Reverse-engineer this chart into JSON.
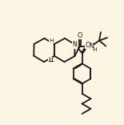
{
  "bg_color": "#fcf5e4",
  "bond_color": "#1a1a1a",
  "bond_lw": 1.3,
  "figsize": [
    1.55,
    1.56
  ],
  "dpi": 100,
  "xlim": [
    -0.5,
    9.5
  ],
  "ylim": [
    -1.0,
    9.5
  ]
}
